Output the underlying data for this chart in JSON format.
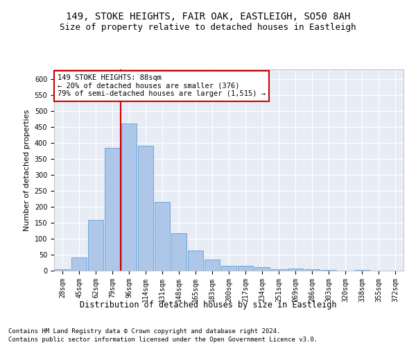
{
  "title1": "149, STOKE HEIGHTS, FAIR OAK, EASTLEIGH, SO50 8AH",
  "title2": "Size of property relative to detached houses in Eastleigh",
  "xlabel": "Distribution of detached houses by size in Eastleigh",
  "ylabel": "Number of detached properties",
  "footer1": "Contains HM Land Registry data © Crown copyright and database right 2024.",
  "footer2": "Contains public sector information licensed under the Open Government Licence v3.0.",
  "categories": [
    "28sqm",
    "45sqm",
    "62sqm",
    "79sqm",
    "96sqm",
    "114sqm",
    "131sqm",
    "148sqm",
    "165sqm",
    "183sqm",
    "200sqm",
    "217sqm",
    "234sqm",
    "251sqm",
    "269sqm",
    "286sqm",
    "303sqm",
    "320sqm",
    "338sqm",
    "355sqm",
    "372sqm"
  ],
  "values": [
    5,
    42,
    158,
    385,
    460,
    390,
    215,
    118,
    63,
    35,
    15,
    15,
    10,
    5,
    7,
    4,
    2,
    1,
    2,
    1,
    1
  ],
  "bar_color": "#aec6e8",
  "bar_edge_color": "#5a9fd4",
  "vline_index": 3.5,
  "vline_color": "#cc0000",
  "annotation_text": "149 STOKE HEIGHTS: 88sqm\n← 20% of detached houses are smaller (376)\n79% of semi-detached houses are larger (1,515) →",
  "annotation_box_color": "#ffffff",
  "annotation_box_edge_color": "#cc0000",
  "ylim": [
    0,
    630
  ],
  "yticks": [
    0,
    50,
    100,
    150,
    200,
    250,
    300,
    350,
    400,
    450,
    500,
    550,
    600
  ],
  "background_color": "#e8edf5",
  "grid_color": "#ffffff",
  "fig_background": "#ffffff",
  "title1_fontsize": 10,
  "title2_fontsize": 9,
  "tick_fontsize": 7,
  "xlabel_fontsize": 8.5,
  "ylabel_fontsize": 8,
  "footer_fontsize": 6.5,
  "annotation_fontsize": 7.5
}
